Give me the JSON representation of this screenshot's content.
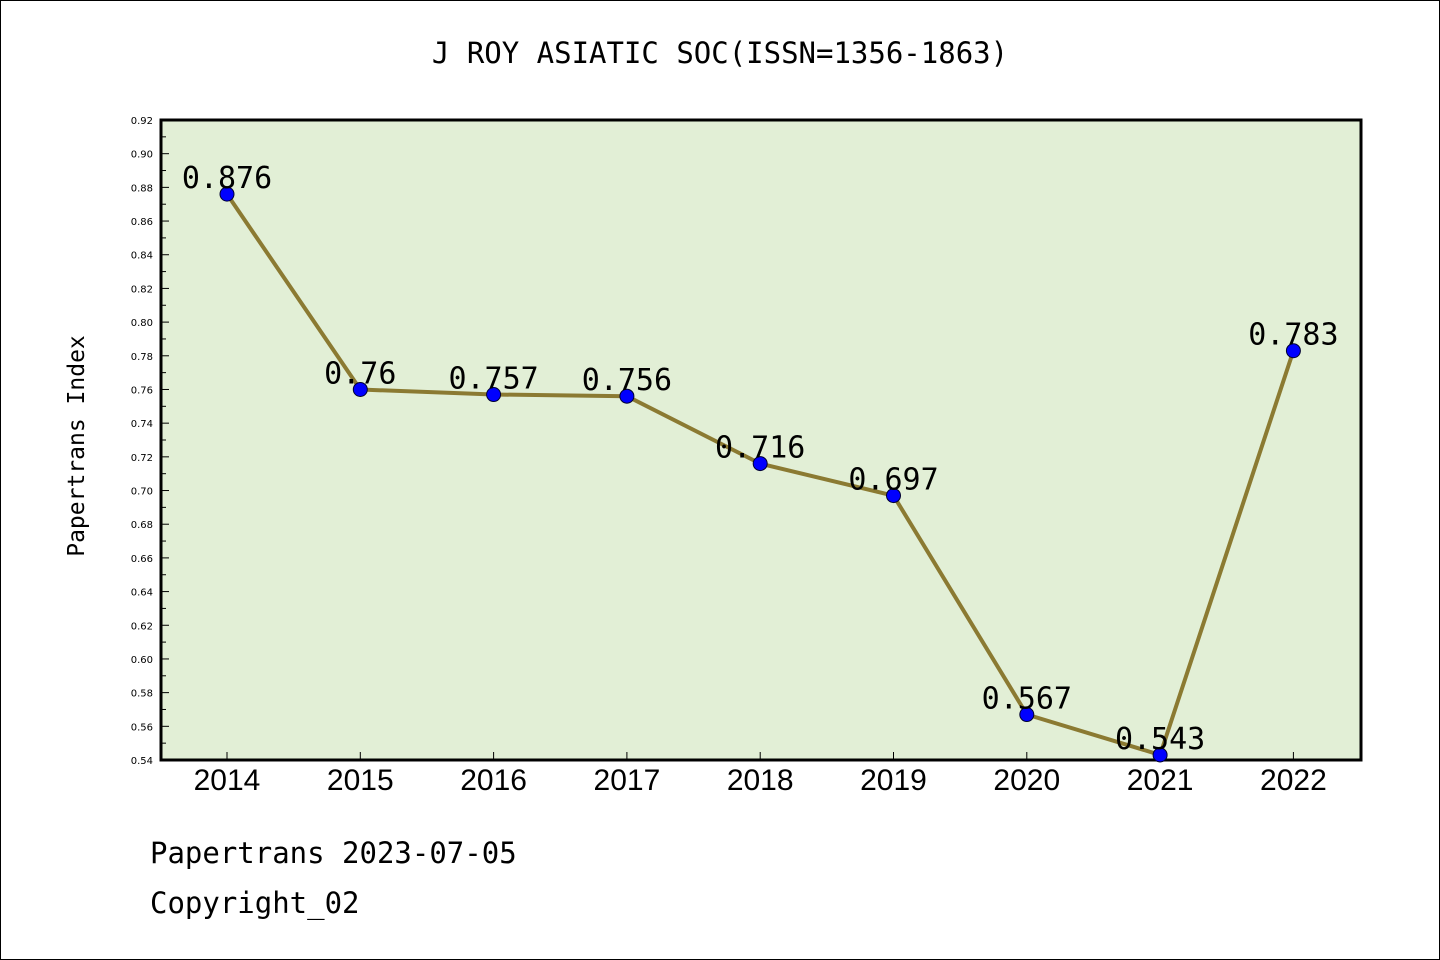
{
  "chart_data": {
    "type": "line",
    "title": "J ROY ASIATIC SOC(ISSN=1356-1863)",
    "xlabel": "",
    "ylabel": "Papertrans Index",
    "categories": [
      "2014",
      "2015",
      "2016",
      "2017",
      "2018",
      "2019",
      "2020",
      "2021",
      "2022"
    ],
    "series": [
      {
        "values": [
          0.876,
          0.76,
          0.757,
          0.756,
          0.716,
          0.697,
          0.567,
          0.543,
          0.783
        ],
        "labels": [
          "0.876",
          "0.76",
          "0.757",
          "0.756",
          "0.716",
          "0.697",
          "0.567",
          "0.543",
          "0.783"
        ],
        "line_color": "#8b7a32",
        "marker_color": "#0000ff"
      }
    ],
    "ylim": [
      0.54,
      0.92
    ],
    "yticks": [
      "0.54",
      "0.56",
      "0.58",
      "0.60",
      "0.62",
      "0.64",
      "0.66",
      "0.68",
      "0.70",
      "0.72",
      "0.74",
      "0.76",
      "0.78",
      "0.80",
      "0.82",
      "0.84",
      "0.86",
      "0.88",
      "0.90",
      "0.92"
    ],
    "plot_background": "#e2efd6",
    "grid": false,
    "legend": "none"
  },
  "footer": {
    "line1": "Papertrans 2023-07-05",
    "line2": "Copyright_02"
  }
}
